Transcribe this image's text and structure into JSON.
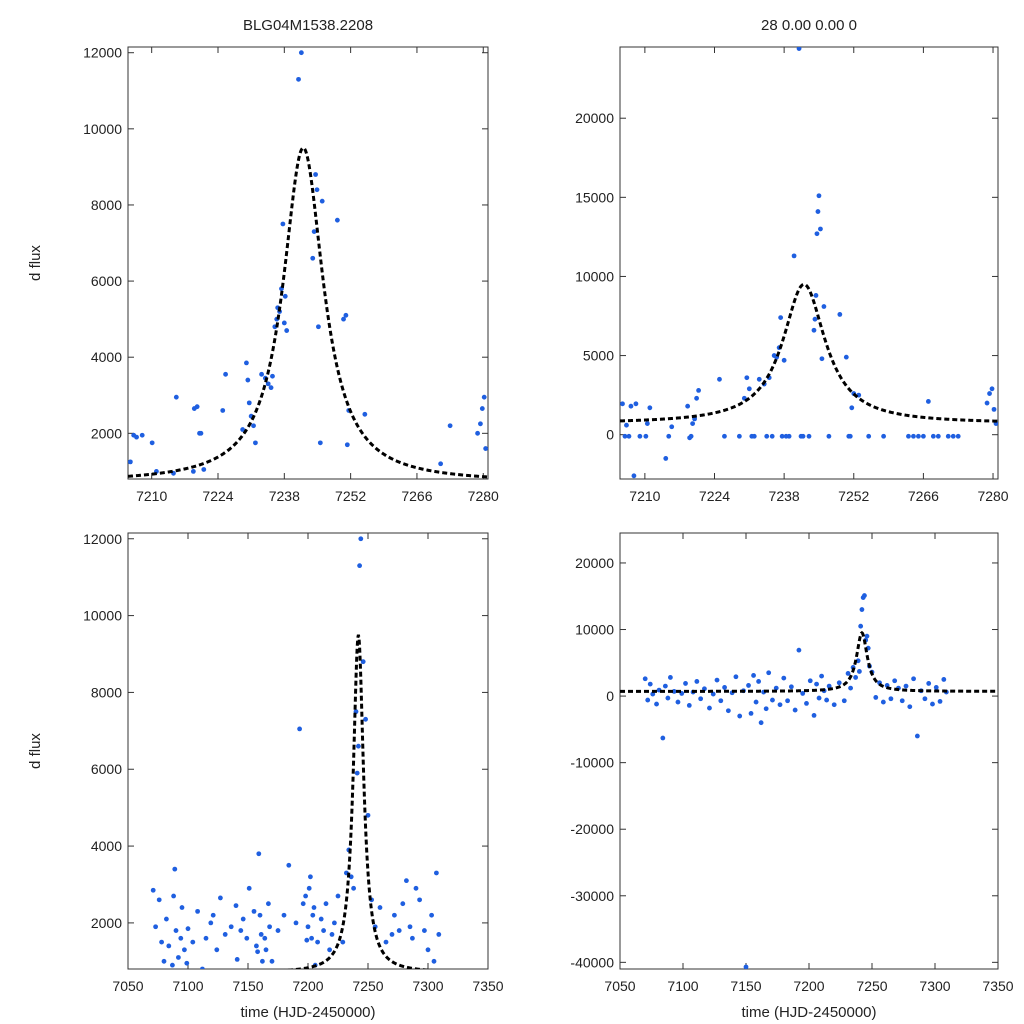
{
  "chart_data": [
    {
      "type": "scatter",
      "panel": "top-left",
      "title": "BLG04M1538.2208",
      "xlabel": "",
      "ylabel": "d flux",
      "xlim": [
        7205,
        7281
      ],
      "ylim": [
        800,
        12150
      ],
      "xticks": [
        7210,
        7224,
        7238,
        7252,
        7266,
        7280
      ],
      "yticks": [
        2000,
        4000,
        6000,
        8000,
        10000,
        12000
      ],
      "model": {
        "t0": 7242.0,
        "tE": 5.2,
        "amp": 8800,
        "base": 700
      },
      "series": [
        {
          "name": "photometry",
          "x": [
            7205.5,
            7206.2,
            7206.8,
            7208.0,
            7210.1,
            7211.0,
            7214.6,
            7215.2,
            7218.8,
            7219.0,
            7219.6,
            7220.1,
            7220.4,
            7221.0,
            7225.0,
            7225.6,
            7229.2,
            7230.0,
            7230.3,
            7230.6,
            7231.0,
            7231.5,
            7231.9,
            7233.2,
            7234.0,
            7234.6,
            7235.2,
            7235.5,
            7236.0,
            7236.4,
            7236.6,
            7237.0,
            7237.4,
            7237.7,
            7238.0,
            7238.2,
            7238.5,
            7241.0,
            7241.6,
            7244.0,
            7244.3,
            7244.6,
            7244.9,
            7245.2,
            7245.6,
            7246.0,
            7249.2,
            7250.5,
            7251.0,
            7251.3,
            7251.6,
            7255.0,
            7271.0,
            7273.0,
            7278.8,
            7279.4,
            7279.8,
            7280.2,
            7280.5
          ],
          "y": [
            1250,
            1950,
            1900,
            1950,
            1750,
            1000,
            950,
            2950,
            1000,
            2650,
            2700,
            2000,
            2000,
            1050,
            2600,
            3550,
            2100,
            3850,
            3400,
            2800,
            2450,
            2200,
            1750,
            3550,
            3450,
            3300,
            3200,
            3500,
            4800,
            5000,
            5300,
            5200,
            5800,
            7500,
            4900,
            5600,
            4700,
            11300,
            12000,
            6600,
            7300,
            8800,
            8400,
            4800,
            1750,
            8100,
            7600,
            5000,
            5100,
            1700,
            2600,
            2500,
            1200,
            2200,
            2000,
            2250,
            2650,
            2950,
            1600
          ]
        }
      ]
    },
    {
      "type": "scatter",
      "panel": "top-right",
      "title": "28  0.00  0.00  0",
      "xlabel": "",
      "ylabel": "",
      "xlim": [
        7205,
        7281
      ],
      "ylim": [
        -2800,
        24500
      ],
      "xticks": [
        7210,
        7224,
        7238,
        7252,
        7266,
        7280
      ],
      "yticks": [
        0,
        5000,
        10000,
        15000,
        20000
      ],
      "model": {
        "t0": 7242.0,
        "tE": 5.2,
        "amp": 8800,
        "base": 700
      },
      "series": [
        {
          "name": "photometry",
          "x": [
            7205.5,
            7206.0,
            7206.3,
            7206.8,
            7207.2,
            7207.8,
            7208.2,
            7209.0,
            7210.2,
            7210.5,
            7211.0,
            7214.2,
            7214.8,
            7215.4,
            7218.6,
            7219.0,
            7219.3,
            7219.6,
            7220.0,
            7220.4,
            7220.8,
            7225.0,
            7226.0,
            7229.0,
            7230.0,
            7230.5,
            7231.0,
            7231.5,
            7232.0,
            7233.0,
            7234.0,
            7234.5,
            7235.0,
            7235.6,
            7236.0,
            7236.5,
            7237.0,
            7237.3,
            7237.6,
            7238.0,
            7238.4,
            7239.0,
            7240.0,
            7241.0,
            7241.4,
            7241.8,
            7243.0,
            7244.0,
            7244.2,
            7244.4,
            7244.6,
            7244.8,
            7245.0,
            7245.3,
            7245.6,
            7246.0,
            7247.0,
            7249.2,
            7250.5,
            7251.0,
            7251.3,
            7251.6,
            7252.0,
            7253.0,
            7255.0,
            7258.0,
            7263.0,
            7264.0,
            7265.0,
            7266.0,
            7267.0,
            7268.0,
            7269.0,
            7271.0,
            7272.0,
            7273.0,
            7278.8,
            7279.3,
            7279.8,
            7280.2,
            7280.6
          ],
          "y": [
            1950,
            -100,
            600,
            -100,
            1800,
            -2600,
            1950,
            -100,
            -100,
            700,
            1700,
            -1500,
            -100,
            500,
            1800,
            -200,
            -100,
            700,
            1000,
            2300,
            2800,
            3500,
            -100,
            -100,
            2300,
            3600,
            2900,
            -100,
            -100,
            3500,
            3200,
            -100,
            3600,
            -100,
            5000,
            4900,
            5500,
            7400,
            -100,
            4700,
            -100,
            -100,
            11300,
            24400,
            -100,
            -100,
            -100,
            6600,
            7300,
            8800,
            12700,
            14100,
            15100,
            13000,
            4800,
            8100,
            -100,
            7600,
            4900,
            -100,
            -100,
            1700,
            2600,
            2500,
            -100,
            -100,
            -100,
            -100,
            -100,
            -100,
            2100,
            -100,
            -100,
            -100,
            -100,
            -100,
            2000,
            2600,
            2900,
            1600,
            700
          ]
        }
      ]
    },
    {
      "type": "scatter",
      "panel": "bottom-left",
      "title": "",
      "xlabel": "time (HJD-2450000)",
      "ylabel": "d flux",
      "xlim": [
        7050,
        7350
      ],
      "ylim": [
        800,
        12150
      ],
      "xticks": [
        7050,
        7100,
        7150,
        7200,
        7250,
        7300,
        7350
      ],
      "yticks": [
        2000,
        4000,
        6000,
        8000,
        10000,
        12000
      ],
      "model": {
        "t0": 7242.0,
        "tE": 5.2,
        "amp": 8800,
        "base": 700
      },
      "series": [
        {
          "name": "photometry",
          "x": [
            7071,
            7073,
            7076,
            7078,
            7080,
            7082,
            7084,
            7087,
            7088,
            7089,
            7090,
            7092,
            7094,
            7095,
            7097,
            7099,
            7100,
            7104,
            7108,
            7112,
            7115,
            7119,
            7121,
            7124,
            7127,
            7131,
            7136,
            7140,
            7141,
            7144,
            7146,
            7149,
            7151,
            7155,
            7157,
            7158,
            7159,
            7160,
            7161,
            7162,
            7164,
            7165,
            7167,
            7168,
            7170,
            7175,
            7180,
            7184,
            7190,
            7193,
            7196,
            7198,
            7199,
            7200,
            7201,
            7202,
            7203,
            7204,
            7205,
            7206,
            7208,
            7211,
            7213,
            7215,
            7218,
            7220,
            7222,
            7225,
            7229,
            7232,
            7234,
            7236,
            7238,
            7240,
            7241,
            7242,
            7243,
            7244,
            7246,
            7248,
            7250,
            7253,
            7256,
            7260,
            7265,
            7270,
            7272,
            7276,
            7279,
            7282,
            7285,
            7287,
            7290,
            7293,
            7297,
            7300,
            7303,
            7305,
            7307,
            7309
          ],
          "y": [
            2850,
            1900,
            2600,
            1500,
            1000,
            2100,
            1400,
            900,
            2700,
            3400,
            1800,
            1100,
            1600,
            2400,
            1300,
            950,
            1850,
            1500,
            2300,
            800,
            1600,
            2000,
            2200,
            1300,
            2650,
            1700,
            1900,
            2450,
            1050,
            1800,
            2100,
            1600,
            2900,
            2300,
            1400,
            1250,
            3800,
            2200,
            1700,
            1000,
            1600,
            1300,
            2500,
            1900,
            1000,
            1800,
            2200,
            3500,
            2000,
            7050,
            2500,
            2700,
            1550,
            1900,
            2900,
            3200,
            1600,
            2200,
            2400,
            900,
            1500,
            2100,
            1800,
            2500,
            1300,
            1700,
            2000,
            2700,
            1500,
            3300,
            3900,
            3200,
            2900,
            7500,
            5900,
            6600,
            11300,
            12000,
            8800,
            7300,
            4800,
            2600,
            1900,
            2400,
            1500,
            1700,
            2200,
            1800,
            2500,
            3100,
            1900,
            1600,
            2900,
            2600,
            1800,
            1300,
            2200,
            1000,
            3300,
            1700
          ]
        }
      ]
    },
    {
      "type": "scatter",
      "panel": "bottom-right",
      "title": "",
      "xlabel": "time (HJD-2450000)",
      "ylabel": "",
      "xlim": [
        7050,
        7350
      ],
      "ylim": [
        -41000,
        24500
      ],
      "xticks": [
        7050,
        7100,
        7150,
        7200,
        7250,
        7300,
        7350
      ],
      "yticks": [
        -40000,
        -30000,
        -20000,
        -10000,
        0,
        10000,
        20000
      ],
      "model": {
        "t0": 7242.0,
        "tE": 5.2,
        "amp": 8800,
        "base": 700
      },
      "series": [
        {
          "name": "photometry",
          "x": [
            7070,
            7072,
            7074,
            7076,
            7079,
            7081,
            7084,
            7086,
            7088,
            7090,
            7093,
            7096,
            7099,
            7102,
            7105,
            7108,
            7111,
            7114,
            7117,
            7121,
            7124,
            7127,
            7130,
            7133,
            7136,
            7139,
            7142,
            7145,
            7148,
            7150,
            7152,
            7154,
            7156,
            7158,
            7160,
            7162,
            7164,
            7166,
            7168,
            7171,
            7174,
            7177,
            7180,
            7183,
            7186,
            7189,
            7192,
            7195,
            7198,
            7201,
            7204,
            7206,
            7208,
            7210,
            7212,
            7214,
            7216,
            7220,
            7224,
            7228,
            7231,
            7233,
            7235,
            7237,
            7239,
            7240,
            7241,
            7242,
            7243,
            7244,
            7245,
            7246,
            7247,
            7248,
            7250,
            7253,
            7256,
            7259,
            7262,
            7265,
            7268,
            7271,
            7274,
            7277,
            7280,
            7283,
            7286,
            7289,
            7292,
            7295,
            7298,
            7301,
            7304,
            7307,
            7309
          ],
          "y": [
            2600,
            -600,
            1800,
            300,
            -1200,
            900,
            -6300,
            1500,
            -300,
            2800,
            700,
            -900,
            400,
            1900,
            -1400,
            600,
            2200,
            -400,
            1100,
            -1800,
            300,
            2400,
            -700,
            1300,
            -2200,
            500,
            2900,
            -3000,
            800,
            -40700,
            1600,
            -2600,
            3100,
            -900,
            2200,
            -4000,
            600,
            -1900,
            3500,
            -600,
            1200,
            -1300,
            2700,
            -700,
            1400,
            -2100,
            6900,
            400,
            -1100,
            2300,
            -2900,
            1800,
            -300,
            3000,
            800,
            -600,
            1500,
            -1300,
            2000,
            -700,
            3400,
            1200,
            4300,
            2800,
            5300,
            3700,
            10500,
            13000,
            14800,
            15100,
            8400,
            9000,
            7200,
            4500,
            3600,
            -200,
            2000,
            -900,
            1600,
            -400,
            2300,
            1200,
            -700,
            1500,
            -1600,
            2600,
            -6000,
            800,
            -400,
            1900,
            -1200,
            1300,
            -800,
            2500,
            600
          ]
        }
      ]
    }
  ]
}
